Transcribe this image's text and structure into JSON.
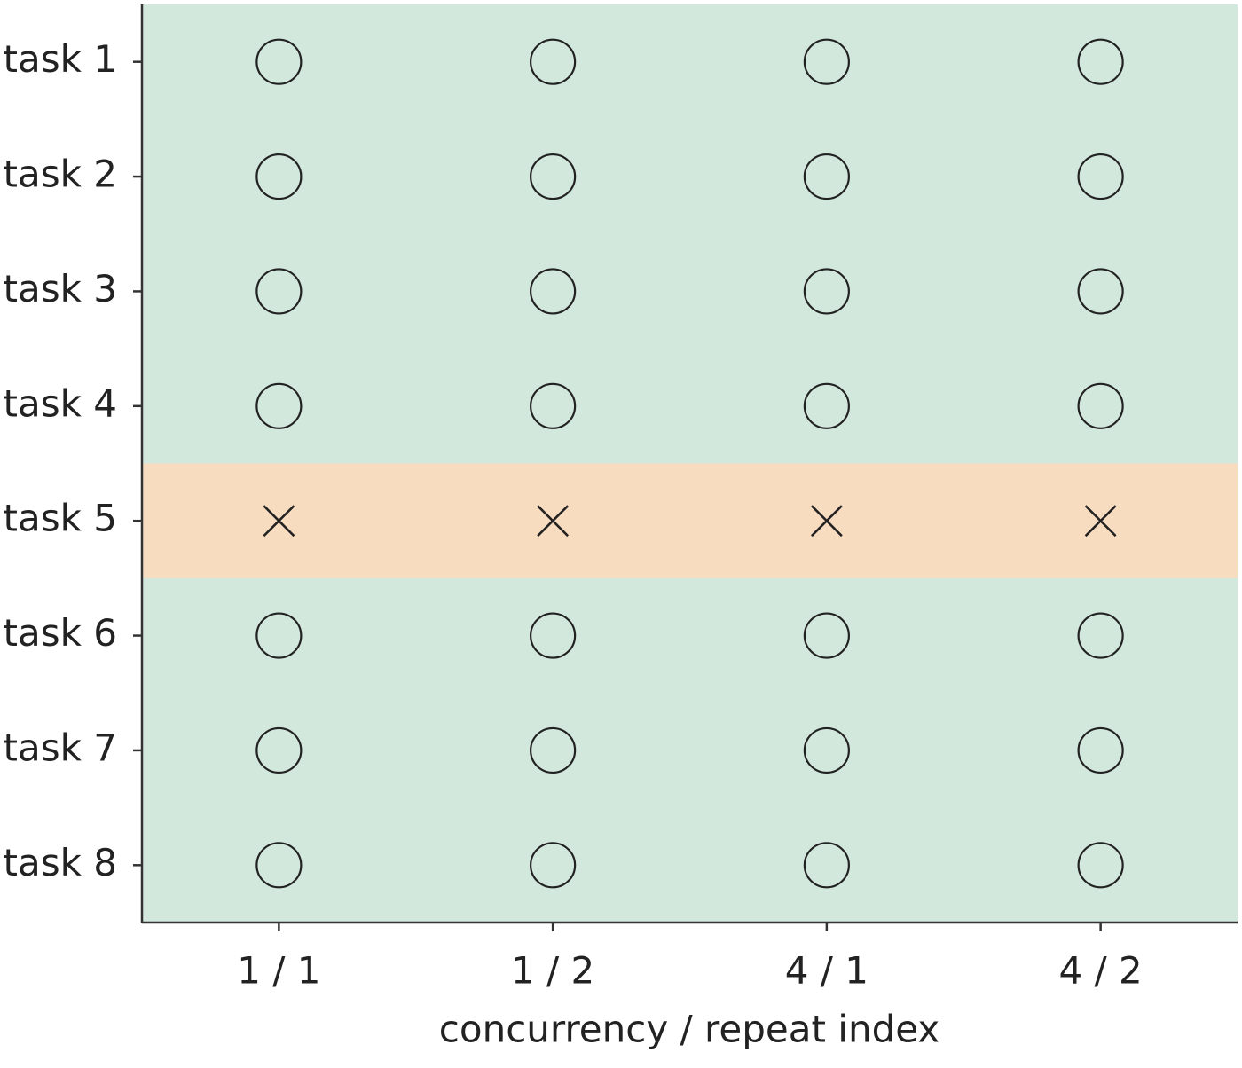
{
  "chart_data": {
    "type": "status-grid",
    "x_label": "concurrency / repeat index",
    "categories": [
      "1 / 1",
      "1 / 2",
      "4 / 1",
      "4 / 2"
    ],
    "rows": [
      "task 1",
      "task 2",
      "task 3",
      "task 4",
      "task 5",
      "task 6",
      "task 7",
      "task 8"
    ],
    "values": [
      [
        true,
        true,
        true,
        true
      ],
      [
        true,
        true,
        true,
        true
      ],
      [
        true,
        true,
        true,
        true
      ],
      [
        true,
        true,
        true,
        true
      ],
      [
        false,
        false,
        false,
        false
      ],
      [
        true,
        true,
        true,
        true
      ],
      [
        true,
        true,
        true,
        true
      ],
      [
        true,
        true,
        true,
        true
      ]
    ],
    "pass_color": "#d2e8dc",
    "fail_color": "#f8dcc0",
    "marker_color": "#222222"
  }
}
